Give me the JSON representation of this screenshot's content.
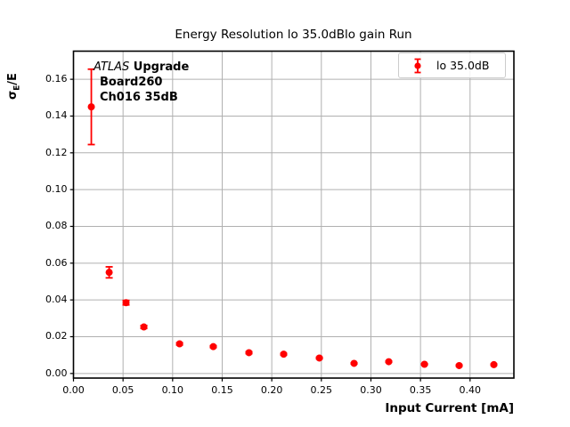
{
  "axes": {
    "title": "Energy Resolution lo 35.0dBlo gain Run",
    "xlabel": "Input Current [mA]",
    "ylabel": {
      "base": "σ",
      "sub": "E",
      "rest": "/E"
    }
  },
  "annotation": {
    "brand": "ATLAS",
    "brand_suffix": " Upgrade",
    "line2": "Board260",
    "line3": "Ch016 35dB"
  },
  "legend": {
    "label": "lo 35.0dB"
  },
  "chart_data": {
    "type": "scatter",
    "title": "Energy Resolution lo 35.0dBlo gain Run",
    "xlabel": "Input Current [mA]",
    "ylabel": "σ_E/E",
    "grid": true,
    "legend_position": "upper right",
    "xlim": [
      0,
      0.4442
    ],
    "ylim": [
      -0.0025,
      0.1753
    ],
    "xtick_values": [
      0.0,
      0.05,
      0.1,
      0.15,
      0.2,
      0.25,
      0.3,
      0.35,
      0.4
    ],
    "xtick_labels": [
      "0.00",
      "0.05",
      "0.10",
      "0.15",
      "0.20",
      "0.25",
      "0.30",
      "0.35",
      "0.40"
    ],
    "ytick_values": [
      0.0,
      0.02,
      0.04,
      0.06,
      0.08,
      0.1,
      0.12,
      0.14,
      0.16
    ],
    "ytick_labels": [
      "0.00",
      "0.02",
      "0.04",
      "0.06",
      "0.08",
      "0.10",
      "0.12",
      "0.14",
      "0.16"
    ],
    "colors": {
      "series": "#ff0000",
      "grid": "#b0b0b0",
      "axis": "#000000"
    },
    "series": [
      {
        "name": "lo 35.0dB",
        "color": "#ff0000",
        "marker": "circle",
        "x": [
          0.018,
          0.036,
          0.053,
          0.071,
          0.107,
          0.141,
          0.177,
          0.212,
          0.248,
          0.283,
          0.318,
          0.354,
          0.389,
          0.424
        ],
        "y": [
          0.145,
          0.055,
          0.0385,
          0.0253,
          0.0161,
          0.0146,
          0.0113,
          0.0105,
          0.0084,
          0.0055,
          0.0064,
          0.005,
          0.0043,
          0.0048
        ],
        "yerr": [
          0.0205,
          0.003,
          0.0012,
          0.0008,
          0.0006,
          0.0005,
          0.0005,
          0.0004,
          0.0004,
          0.0003,
          0.0003,
          0.0003,
          0.0003,
          0.0003
        ]
      }
    ]
  }
}
